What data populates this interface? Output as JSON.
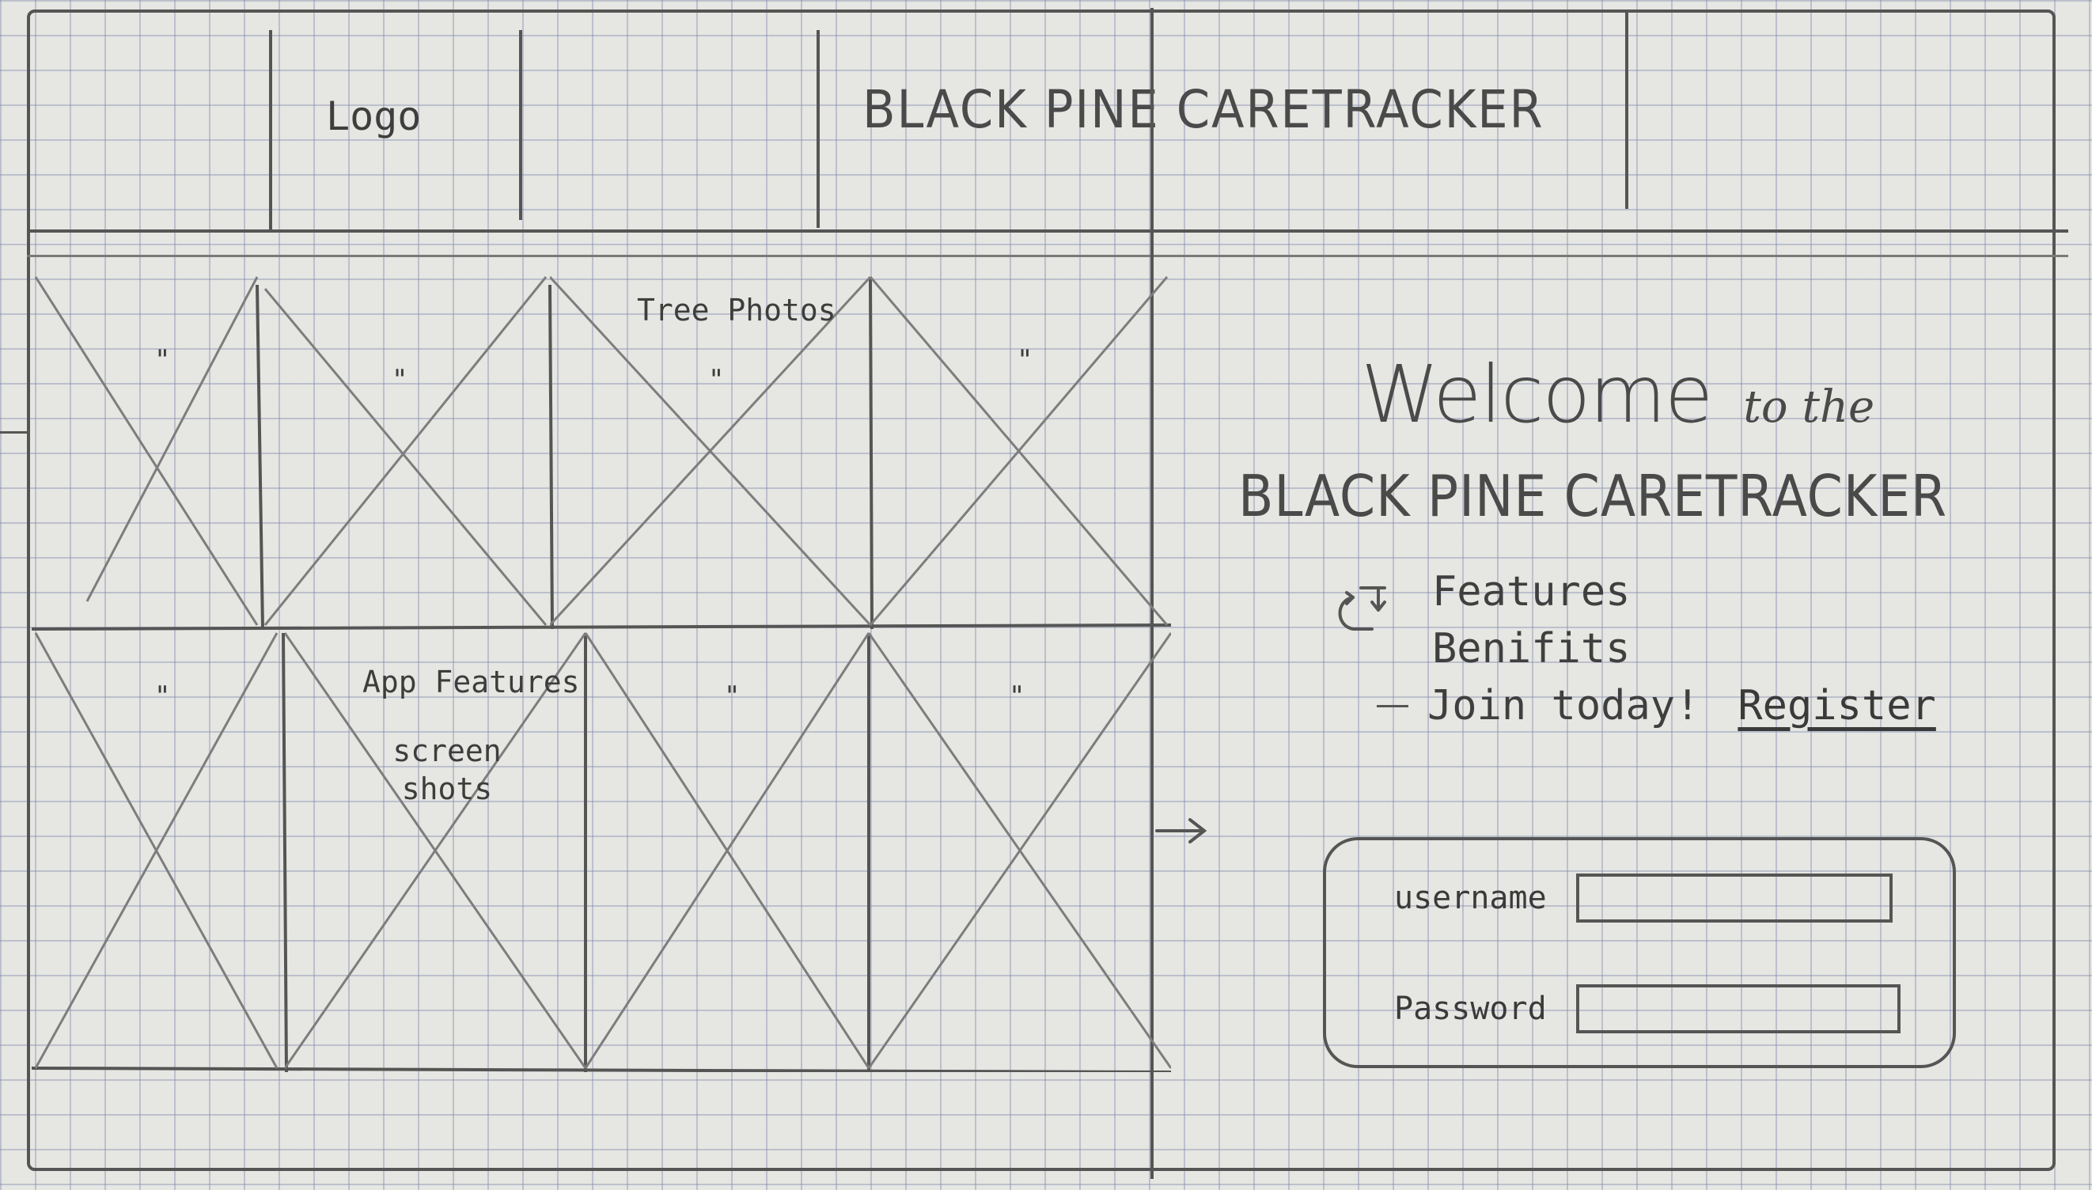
{
  "header": {
    "logo_label": "Logo",
    "app_title": "BLACK PINE CARETRACKER"
  },
  "gallery": {
    "top_row_label": "Tree Photos",
    "bottom_row_label_line1": "App Features",
    "bottom_row_label_line2": "screen",
    "bottom_row_label_line3": "shots",
    "ditto_mark": "\""
  },
  "welcome": {
    "heading_word": "Welcome",
    "heading_rest": "to the",
    "brand": "BLACK PINE CARETRACKER"
  },
  "info_list": {
    "items": [
      "Features",
      "Benifits",
      "Join today!"
    ],
    "register_label": "Register"
  },
  "login": {
    "username_label": "username",
    "password_label": "Password",
    "username_value": "",
    "password_value": ""
  },
  "icons": [
    "cycle-arrows-icon",
    "right-arrow-icon",
    "image-placeholder-icon"
  ]
}
